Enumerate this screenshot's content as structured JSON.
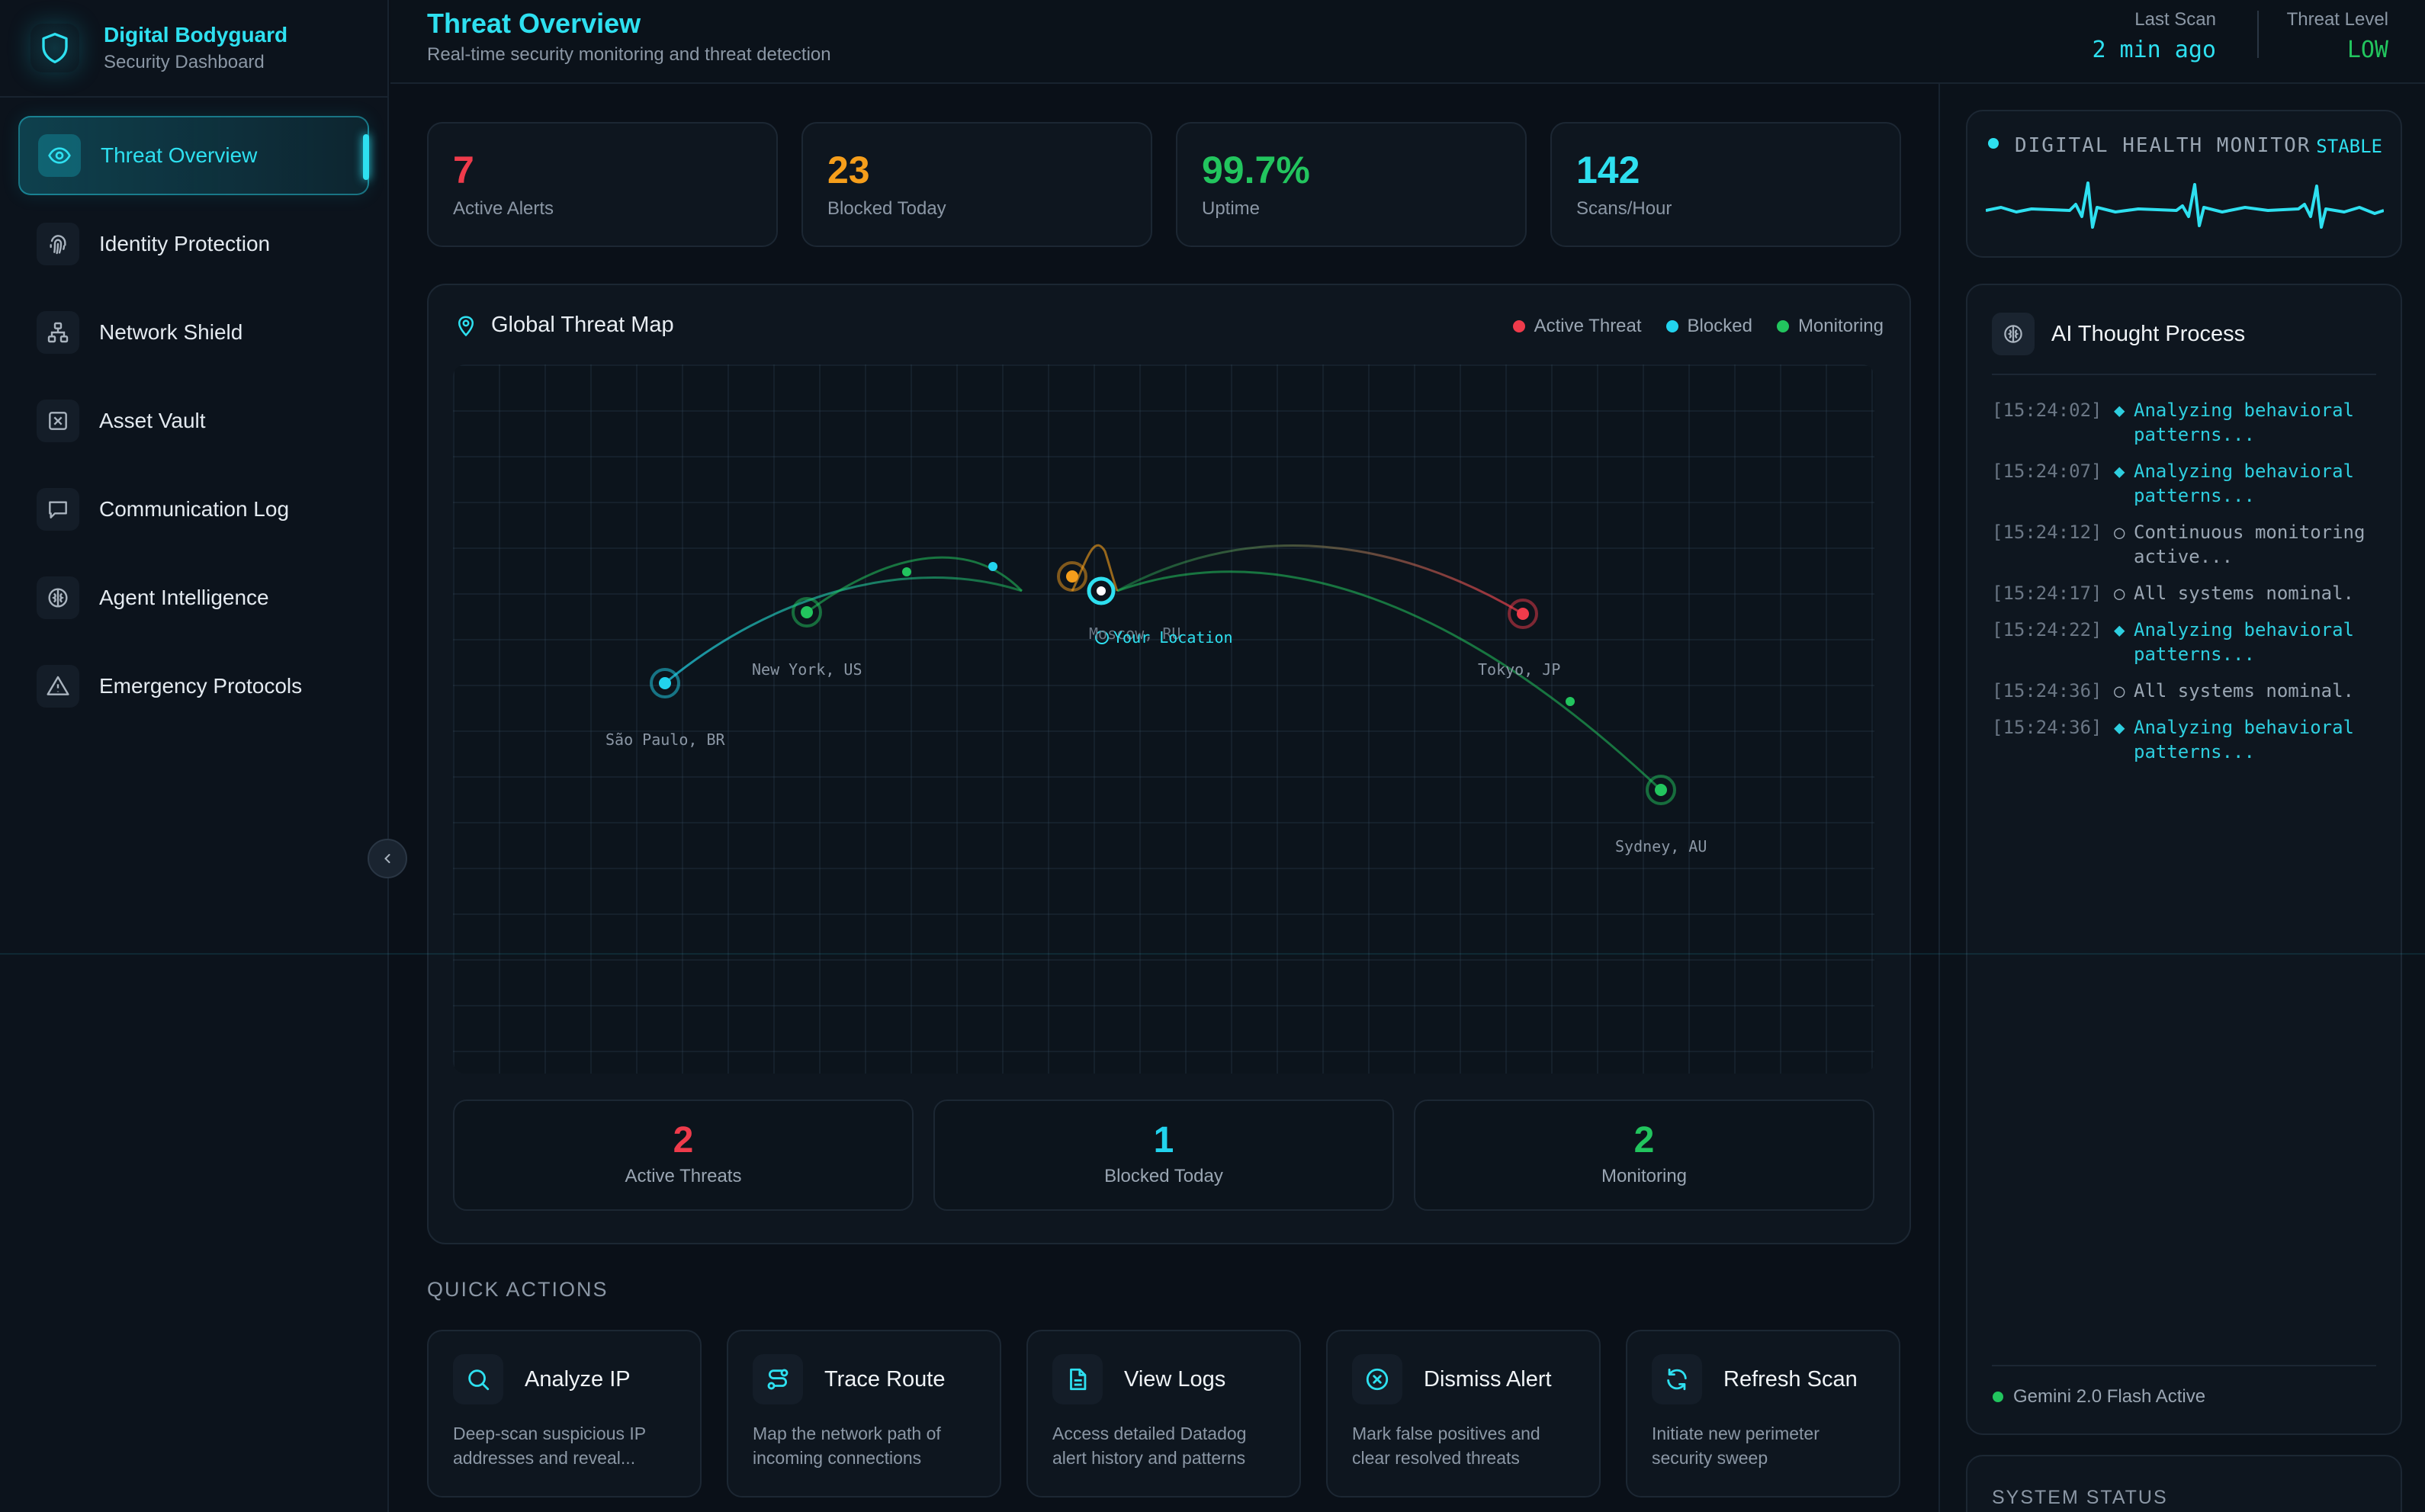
{
  "brand": {
    "title": "Digital Bodyguard",
    "subtitle": "Security Dashboard"
  },
  "sidebar": {
    "items": [
      {
        "label": "Threat Overview",
        "icon": "eye-icon",
        "active": true
      },
      {
        "label": "Identity Protection",
        "icon": "fingerprint-icon"
      },
      {
        "label": "Network Shield",
        "icon": "network-icon"
      },
      {
        "label": "Asset Vault",
        "icon": "vault-icon"
      },
      {
        "label": "Communication Log",
        "icon": "message-icon"
      },
      {
        "label": "Agent Intelligence",
        "icon": "brain-icon"
      },
      {
        "label": "Emergency Protocols",
        "icon": "warning-icon"
      }
    ]
  },
  "header": {
    "title": "Threat Overview",
    "subtitle": "Real-time security monitoring and threat detection",
    "last_scan_label": "Last Scan",
    "last_scan_value": "2 min ago",
    "threat_level_label": "Threat Level",
    "threat_level_value": "LOW"
  },
  "stats": [
    {
      "value": "7",
      "label": "Active Alerts",
      "color": "#ef3b4b"
    },
    {
      "value": "23",
      "label": "Blocked Today",
      "color": "#f59e1b"
    },
    {
      "value": "99.7%",
      "label": "Uptime",
      "color": "#22c55e"
    },
    {
      "value": "142",
      "label": "Scans/Hour",
      "color": "#2ee0f0"
    }
  ],
  "map": {
    "title": "Global Threat Map",
    "legend": [
      {
        "label": "Active Threat",
        "color": "#ef3b4b"
      },
      {
        "label": "Blocked",
        "color": "#22d3ee"
      },
      {
        "label": "Monitoring",
        "color": "#22c55e"
      }
    ],
    "cities": {
      "sao_paulo": "São Paulo, BR",
      "new_york": "New York, US",
      "moscow": "Moscow, RU",
      "tokyo": "Tokyo, JP",
      "sydney": "Sydney, AU",
      "you": "Your Location"
    },
    "summary": [
      {
        "value": "2",
        "label": "Active Threats",
        "color": "#ef3b4b"
      },
      {
        "value": "1",
        "label": "Blocked Today",
        "color": "#22d3ee"
      },
      {
        "value": "2",
        "label": "Monitoring",
        "color": "#22c55e"
      }
    ]
  },
  "quick_actions": {
    "title": "QUICK ACTIONS",
    "items": [
      {
        "label": "Analyze IP",
        "desc": "Deep-scan suspicious IP addresses and reveal...",
        "icon": "search-icon"
      },
      {
        "label": "Trace Route",
        "desc": "Map the network path of incoming connections",
        "icon": "route-icon"
      },
      {
        "label": "View Logs",
        "desc": "Access detailed Datadog alert history and patterns",
        "icon": "file-icon"
      },
      {
        "label": "Dismiss Alert",
        "desc": "Mark false positives and clear resolved threats",
        "icon": "x-circle-icon"
      },
      {
        "label": "Refresh Scan",
        "desc": "Initiate new perimeter security sweep",
        "icon": "refresh-icon"
      }
    ]
  },
  "health": {
    "title": "DIGITAL HEALTH MONITOR",
    "status": "STABLE"
  },
  "ai": {
    "title": "AI Thought Process",
    "logs": [
      {
        "time": "[15:24:02]",
        "mark": "◆",
        "text": "Analyzing behavioral patterns...",
        "color": "#2ecfe0"
      },
      {
        "time": "[15:24:07]",
        "mark": "◆",
        "text": "Analyzing behavioral patterns...",
        "color": "#2ecfe0"
      },
      {
        "time": "[15:24:12]",
        "mark": "○",
        "text": "Continuous monitoring active...",
        "color": "#9aa6b3"
      },
      {
        "time": "[15:24:17]",
        "mark": "○",
        "text": "All systems nominal.",
        "color": "#9aa6b3"
      },
      {
        "time": "[15:24:22]",
        "mark": "◆",
        "text": "Analyzing behavioral patterns...",
        "color": "#2ecfe0"
      },
      {
        "time": "[15:24:36]",
        "mark": "○",
        "text": "All systems nominal.",
        "color": "#9aa6b3"
      },
      {
        "time": "[15:24:36]",
        "mark": "◆",
        "text": "Analyzing behavioral patterns...",
        "color": "#2ecfe0"
      }
    ],
    "footer": "Gemini 2.0 Flash Active"
  },
  "system_status": {
    "title": "SYSTEM STATUS"
  }
}
